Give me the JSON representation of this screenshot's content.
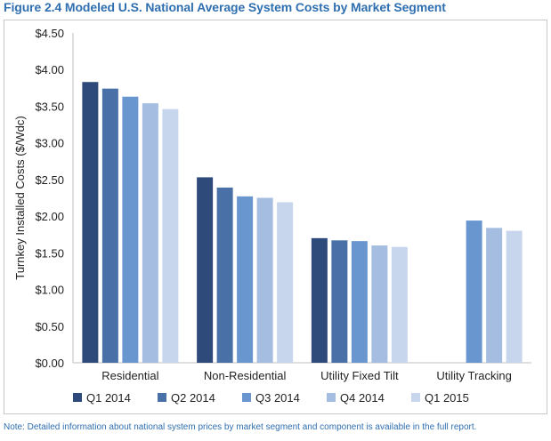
{
  "figure_title": "Figure 2.4  Modeled U.S. National Average System Costs by Market Segment",
  "note": "Note: Detailed information about national system prices by market segment and component is available in the full report.",
  "chart_data": {
    "type": "bar",
    "title": "",
    "ylabel": "Turnkey Installed Costs ($/Wdc)",
    "xlabel": "",
    "ylim": [
      0,
      4.5
    ],
    "yticks": [
      "$0.00",
      "$0.50",
      "$1.00",
      "$1.50",
      "$2.00",
      "$2.50",
      "$3.00",
      "$3.50",
      "$4.00",
      "$4.50"
    ],
    "grid": false,
    "legend_position": "bottom",
    "categories": [
      "Residential",
      "Non-Residential",
      "Utility Fixed Tilt",
      "Utility Tracking"
    ],
    "series": [
      {
        "name": "Q1 2014",
        "color": "#2e4a7a",
        "values": [
          3.83,
          2.53,
          1.7,
          null
        ]
      },
      {
        "name": "Q2 2014",
        "color": "#4a70a8",
        "values": [
          3.74,
          2.39,
          1.67,
          null
        ]
      },
      {
        "name": "Q3 2014",
        "color": "#6a96cf",
        "values": [
          3.63,
          2.27,
          1.66,
          1.94
        ]
      },
      {
        "name": "Q4 2014",
        "color": "#a4bde0",
        "values": [
          3.54,
          2.25,
          1.6,
          1.84
        ]
      },
      {
        "name": "Q1 2015",
        "color": "#c7d6ec",
        "values": [
          3.46,
          2.19,
          1.58,
          1.8
        ]
      }
    ]
  }
}
